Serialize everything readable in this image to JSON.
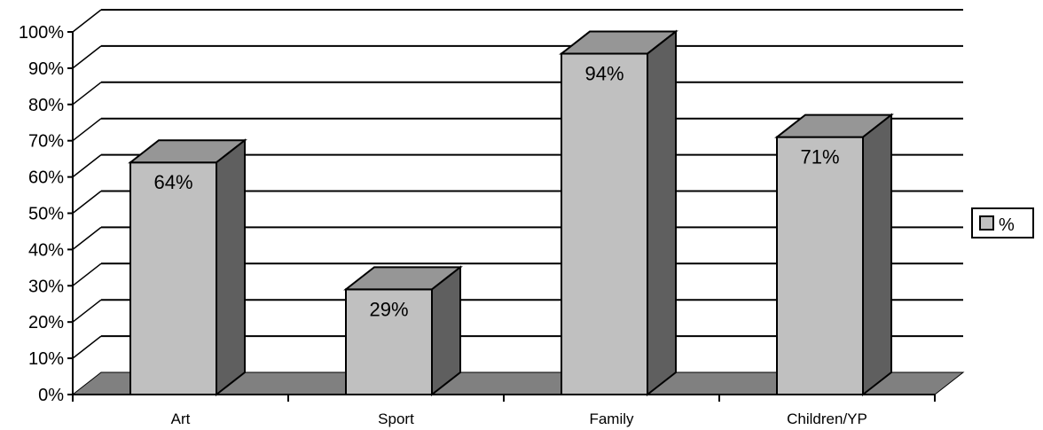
{
  "chart_data": {
    "type": "bar",
    "style": "3d-column",
    "categories": [
      "Art",
      "Sport",
      "Family",
      "Children/YP"
    ],
    "series": [
      {
        "name": "%",
        "values": [
          64,
          29,
          94,
          71
        ]
      }
    ],
    "data_labels": [
      "64%",
      "29%",
      "94%",
      "71%"
    ],
    "y_ticks": [
      "0%",
      "10%",
      "20%",
      "30%",
      "40%",
      "50%",
      "60%",
      "70%",
      "80%",
      "90%",
      "100%"
    ],
    "ylim": [
      0,
      100
    ],
    "grid": true,
    "legend_position": "right",
    "colors": {
      "bar_front": "#c0c0c0",
      "bar_top": "#969696",
      "bar_side": "#5f5f5f",
      "floor": "#808080",
      "gridline": "#000000"
    }
  }
}
